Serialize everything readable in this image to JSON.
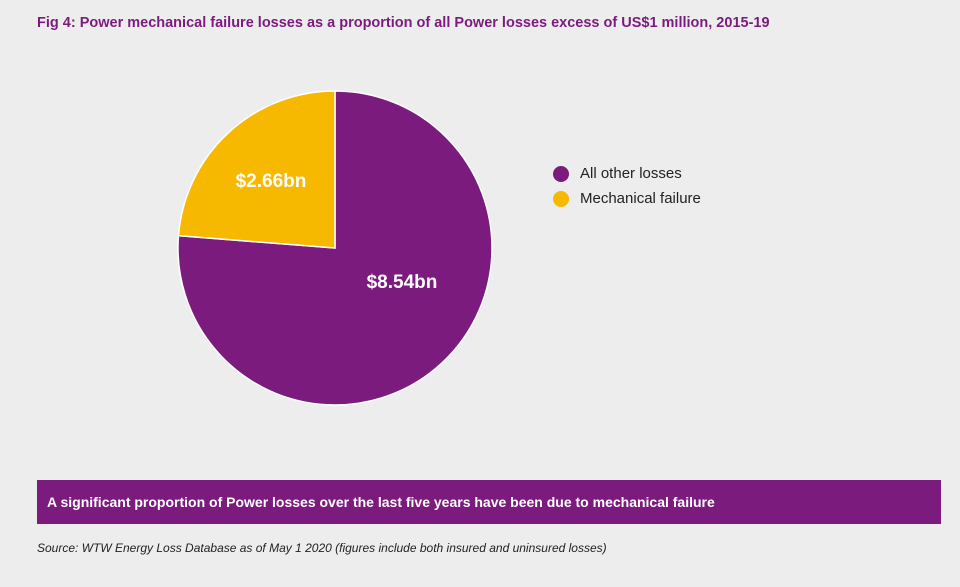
{
  "title": "Fig 4: Power mechanical failure losses as a proportion of all Power losses excess of US$1 million, 2015-19",
  "chart_data": {
    "type": "pie",
    "title": "Fig 4: Power mechanical failure losses as a proportion of all Power losses excess of US$1 million, 2015-19",
    "units": "US$ billion",
    "slices": [
      {
        "name": "All other losses",
        "value": 8.54,
        "label": "$8.54bn",
        "color": "#7c1b7e"
      },
      {
        "name": "Mechanical failure",
        "value": 2.66,
        "label": "$2.66bn",
        "color": "#f7b800"
      }
    ],
    "legend": {
      "position": "right",
      "entries": [
        "All other losses",
        "Mechanical failure"
      ]
    }
  },
  "banner": "A significant proportion of Power losses over the last five years have been due to mechanical failure",
  "source": "Source:  WTW Energy Loss Database as of May 1 2020 (figures include both insured and uninsured losses)"
}
